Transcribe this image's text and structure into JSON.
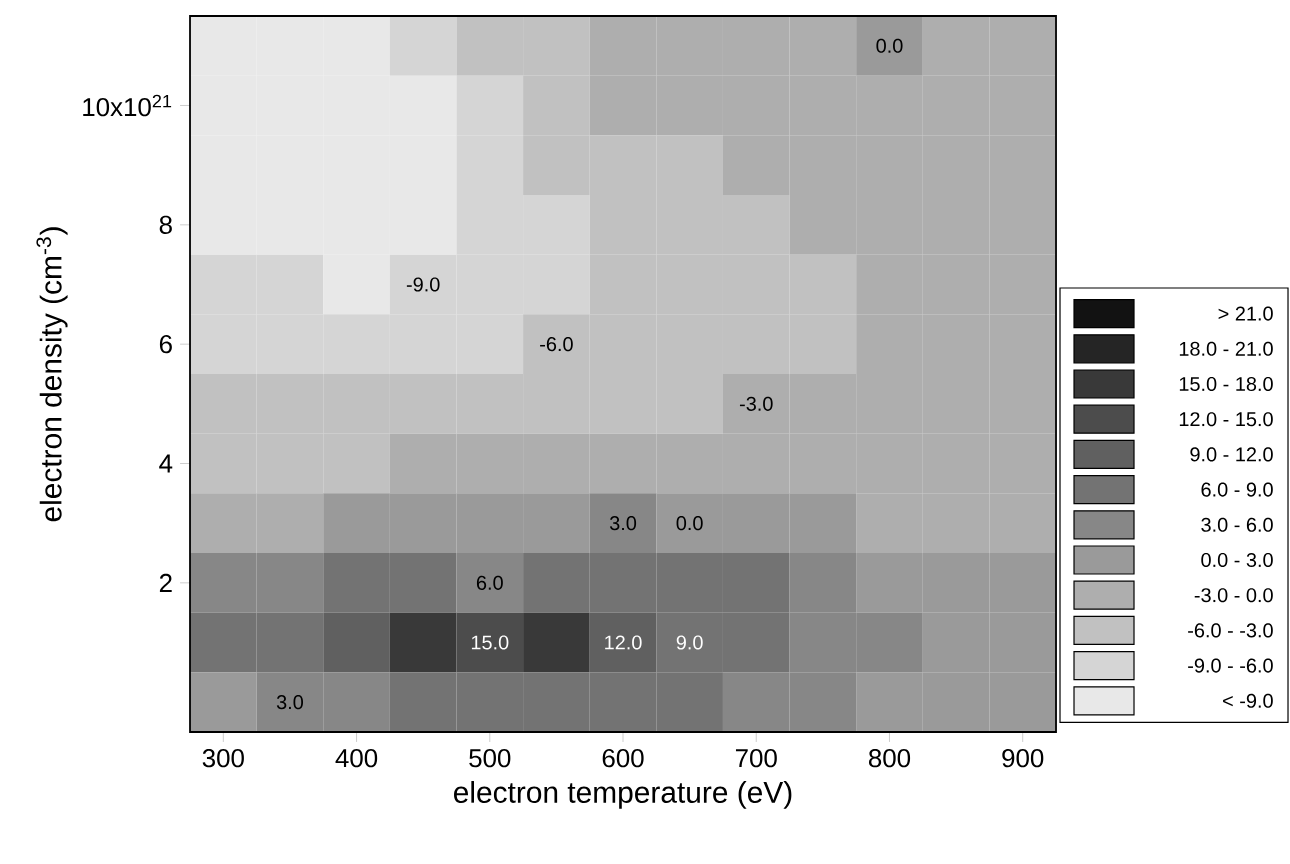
{
  "chart_data": {
    "type": "heatmap",
    "xlabel": "electron temperature (eV)",
    "ylabel": "electron density (cm$^{-3}$)",
    "categories": [
      "300",
      null,
      "400",
      null,
      "500",
      null,
      "600",
      null,
      "700",
      null,
      "800",
      null,
      "900"
    ],
    "y_categories": [
      null,
      "10x10$^{21}$",
      null,
      "8",
      null,
      "6",
      null,
      "4",
      null,
      "2",
      null,
      null
    ],
    "cells": [
      [
        -10.5,
        -10.5,
        -10.5,
        -7.5,
        -4.5,
        -4.5,
        -1.5,
        -1.5,
        -1.5,
        -1.5,
        0.0,
        -1.5,
        -1.5
      ],
      [
        -10.5,
        -10.5,
        -10.5,
        -10.5,
        -7.5,
        -4.5,
        -1.5,
        -1.5,
        -1.5,
        -1.5,
        -1.5,
        -1.5,
        -1.5
      ],
      [
        -10.5,
        -10.5,
        -10.5,
        -10.5,
        -7.5,
        -4.5,
        -4.5,
        -4.5,
        -1.5,
        -1.5,
        -1.5,
        -1.5,
        -1.5
      ],
      [
        -10.5,
        -10.5,
        -10.5,
        -10.5,
        -7.5,
        -7.5,
        -4.5,
        -4.5,
        -4.5,
        -1.5,
        -1.5,
        -1.5,
        -1.5
      ],
      [
        -7.5,
        -7.5,
        -10.5,
        -9.0,
        -7.5,
        -7.5,
        -4.5,
        -4.5,
        -4.5,
        -4.5,
        -1.5,
        -1.5,
        -1.5
      ],
      [
        -7.5,
        -7.5,
        -7.5,
        -7.5,
        -7.5,
        -6.0,
        -4.5,
        -4.5,
        -4.5,
        -4.5,
        -1.5,
        -1.5,
        -1.5
      ],
      [
        -4.5,
        -4.5,
        -4.5,
        -4.5,
        -4.5,
        -4.5,
        -4.5,
        -4.5,
        -3.0,
        -1.5,
        -1.5,
        -1.5,
        -1.5
      ],
      [
        -4.5,
        -4.5,
        -4.5,
        -1.5,
        -1.5,
        -1.5,
        -1.5,
        -1.5,
        -1.5,
        -1.5,
        -1.5,
        -1.5,
        -1.5
      ],
      [
        -1.5,
        -1.5,
        1.5,
        1.5,
        1.5,
        1.5,
        3.0,
        0.0,
        1.5,
        1.5,
        -1.5,
        -1.5,
        -1.5
      ],
      [
        4.5,
        4.5,
        7.5,
        7.5,
        6.0,
        7.5,
        7.5,
        7.5,
        7.5,
        4.5,
        1.5,
        1.5,
        1.5
      ],
      [
        7.5,
        7.5,
        10.5,
        16.5,
        15.0,
        16.5,
        12.0,
        9.0,
        7.5,
        4.5,
        4.5,
        1.5,
        1.5
      ],
      [
        1.5,
        3.0,
        4.5,
        7.5,
        7.5,
        7.5,
        7.5,
        7.5,
        4.5,
        4.5,
        1.5,
        1.5,
        1.5
      ]
    ],
    "cell_labels": [
      [
        null,
        null,
        null,
        null,
        null,
        null,
        null,
        null,
        null,
        null,
        "0.0",
        null,
        null
      ],
      [
        null,
        null,
        null,
        null,
        null,
        null,
        null,
        null,
        null,
        null,
        null,
        null,
        null
      ],
      [
        null,
        null,
        null,
        null,
        null,
        null,
        null,
        null,
        null,
        null,
        null,
        null,
        null
      ],
      [
        null,
        null,
        null,
        null,
        null,
        null,
        null,
        null,
        null,
        null,
        null,
        null,
        null
      ],
      [
        null,
        null,
        null,
        "-9.0",
        null,
        null,
        null,
        null,
        null,
        null,
        null,
        null,
        null
      ],
      [
        null,
        null,
        null,
        null,
        null,
        "-6.0",
        null,
        null,
        null,
        null,
        null,
        null,
        null
      ],
      [
        null,
        null,
        null,
        null,
        null,
        null,
        null,
        null,
        "-3.0",
        null,
        null,
        null,
        null
      ],
      [
        null,
        null,
        null,
        null,
        null,
        null,
        null,
        null,
        null,
        null,
        null,
        null,
        null
      ],
      [
        null,
        null,
        null,
        null,
        null,
        null,
        "3.0",
        "0.0",
        null,
        null,
        null,
        null,
        null
      ],
      [
        null,
        null,
        null,
        null,
        "6.0",
        null,
        null,
        null,
        null,
        null,
        null,
        null,
        null
      ],
      [
        null,
        null,
        null,
        null,
        "15.0",
        null,
        "12.0",
        "9.0",
        null,
        null,
        null,
        null,
        null
      ],
      [
        null,
        "3.0",
        null,
        null,
        null,
        null,
        null,
        null,
        null,
        null,
        null,
        null,
        null
      ]
    ],
    "clim": [
      -12,
      24
    ],
    "cticks": [
      {
        "value": -10.5,
        "label": "<  -9.0"
      },
      {
        "value": -7.5,
        "label": "-9.0 - -6.0"
      },
      {
        "value": -4.5,
        "label": "-6.0 - -3.0"
      },
      {
        "value": -1.5,
        "label": "-3.0 -  0.0"
      },
      {
        "value": 1.5,
        "label": "0.0 -  3.0"
      },
      {
        "value": 4.5,
        "label": "3.0 -  6.0"
      },
      {
        "value": 7.5,
        "label": "6.0 -  9.0"
      },
      {
        "value": 10.5,
        "label": "9.0 - 12.0"
      },
      {
        "value": 13.5,
        "label": "12.0 - 15.0"
      },
      {
        "value": 16.5,
        "label": "15.0 - 18.0"
      },
      {
        "value": 19.5,
        "label": "18.0 - 21.0"
      },
      {
        "value": 22.5,
        "label": ">  21.0"
      }
    ]
  }
}
